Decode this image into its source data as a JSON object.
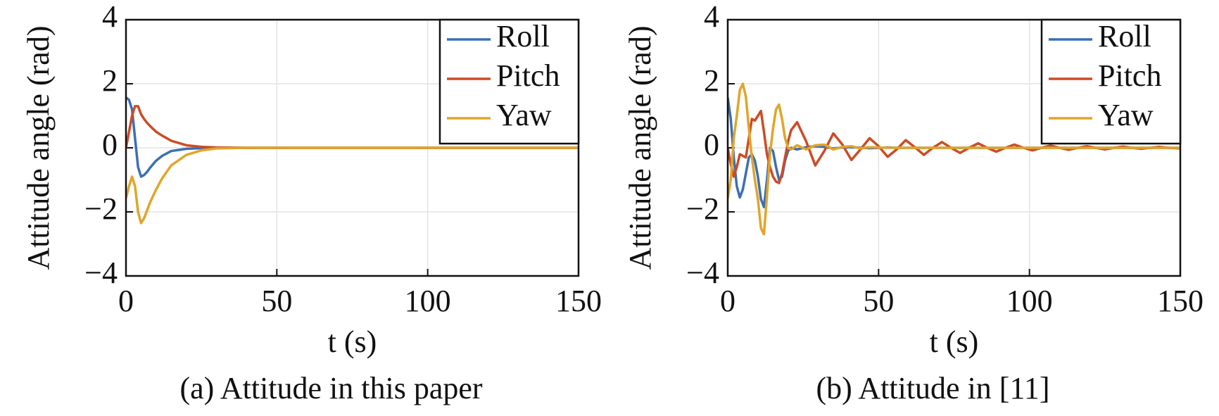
{
  "chart_data": [
    {
      "type": "line",
      "title": "(a) Attitude in this paper",
      "x_label": "t (s)",
      "y_label": "Attitude angle (rad)",
      "x": [
        0,
        1,
        2,
        3,
        4,
        5,
        6,
        7,
        8,
        10,
        12,
        15,
        20,
        25,
        30,
        40,
        60,
        100,
        150
      ],
      "series": [
        {
          "name": "Roll",
          "color": "#3b6fb6",
          "values": [
            1.57,
            1.5,
            1.2,
            0.3,
            -0.6,
            -0.9,
            -0.85,
            -0.75,
            -0.62,
            -0.4,
            -0.25,
            -0.1,
            -0.03,
            -0.01,
            0,
            0,
            0,
            0,
            0
          ]
        },
        {
          "name": "Pitch",
          "color": "#cc4b25",
          "values": [
            0,
            0.5,
            1.0,
            1.3,
            1.3,
            1.05,
            0.9,
            0.78,
            0.68,
            0.5,
            0.38,
            0.22,
            0.08,
            0.03,
            0.01,
            0,
            0,
            0,
            0
          ]
        },
        {
          "name": "Yaw",
          "color": "#e0a52a",
          "values": [
            -1.57,
            -1.2,
            -0.9,
            -1.2,
            -2.0,
            -2.35,
            -2.2,
            -1.95,
            -1.7,
            -1.3,
            -0.95,
            -0.55,
            -0.22,
            -0.08,
            -0.02,
            0,
            0,
            0,
            0
          ]
        }
      ],
      "xlim": [
        0,
        150
      ],
      "xticks": [
        0,
        50,
        100,
        150
      ],
      "ylim": [
        -4,
        4
      ],
      "yticks": [
        {
          "value": -4,
          "label": "−4"
        },
        {
          "value": -2,
          "label": "−2"
        },
        0,
        2,
        4
      ],
      "grid": true,
      "legend": "upper right"
    },
    {
      "type": "line",
      "title": "(b) Attitude in [11]",
      "x_label": "t (s)",
      "y_label": "Attitude angle (rad)",
      "x": [
        0,
        1,
        2,
        3,
        4,
        5,
        6,
        7,
        8,
        9,
        10,
        11,
        12,
        13,
        14,
        15,
        16,
        17,
        18,
        19,
        20,
        21,
        23,
        26,
        29,
        32,
        35,
        38,
        41,
        44,
        47,
        50,
        53,
        56,
        59,
        62,
        65,
        68,
        71,
        74,
        77,
        80,
        83,
        86,
        89,
        92,
        95,
        98,
        101,
        104,
        107,
        110,
        113,
        116,
        119,
        122,
        125,
        128,
        131,
        134,
        137,
        140,
        143,
        146,
        150
      ],
      "series": [
        {
          "name": "Roll",
          "color": "#3b6fb6",
          "values": [
            1.57,
            0.9,
            -0.3,
            -1.2,
            -1.55,
            -1.3,
            -0.8,
            -0.3,
            -0.2,
            -0.4,
            -0.9,
            -1.6,
            -1.85,
            -1.0,
            0,
            -0.1,
            -0.6,
            -1.0,
            -0.9,
            -0.4,
            -0.1,
            0,
            -0.05,
            0.02,
            0.05,
            0.03,
            -0.02,
            0.01,
            0.02,
            0,
            -0.01,
            0,
            0.01,
            0,
            0,
            0,
            0,
            0,
            0,
            0,
            0,
            0,
            0,
            0,
            0,
            0,
            0,
            0,
            0,
            0,
            0,
            0,
            0,
            0,
            0,
            0,
            0,
            0,
            0,
            0,
            0,
            0,
            0,
            0,
            0
          ]
        },
        {
          "name": "Pitch",
          "color": "#cc4b25",
          "values": [
            0,
            -0.5,
            -0.9,
            -0.6,
            -0.2,
            -0.25,
            -0.3,
            0.3,
            0.9,
            0.85,
            1.0,
            1.15,
            0.5,
            -0.2,
            -0.6,
            -0.9,
            -1.05,
            -1.1,
            -0.8,
            -0.3,
            0.2,
            0.55,
            0.8,
            0.2,
            -0.55,
            -0.1,
            0.45,
            0.1,
            -0.38,
            -0.05,
            0.3,
            0.05,
            -0.28,
            -0.05,
            0.24,
            0.02,
            -0.22,
            0,
            0.18,
            0,
            -0.16,
            0,
            0.14,
            0,
            -0.12,
            0,
            0.1,
            0,
            -0.08,
            0,
            0.07,
            0,
            -0.06,
            0,
            0.05,
            0,
            -0.05,
            0,
            0.04,
            0,
            -0.03,
            0,
            0.03,
            0,
            -0.02
          ]
        },
        {
          "name": "Yaw",
          "color": "#e0a52a",
          "values": [
            -1.57,
            -1.0,
            0.3,
            1.0,
            1.8,
            2.0,
            1.6,
            0.6,
            -0.3,
            -1.0,
            -1.6,
            -2.5,
            -2.7,
            -1.5,
            -0.2,
            0.6,
            1.2,
            1.35,
            0.9,
            0.3,
            0,
            -0.05,
            0.08,
            -0.05,
            0.08,
            0.1,
            -0.05,
            0.03,
            0.05,
            -0.02,
            0.02,
            0.01,
            0,
            0,
            0,
            0,
            0,
            0,
            0,
            0,
            0,
            0,
            0,
            0,
            0,
            0,
            0,
            0,
            0,
            0,
            0,
            0,
            0,
            0,
            0,
            0,
            0,
            0,
            0,
            0,
            0,
            0,
            0,
            0,
            0
          ]
        }
      ],
      "xlim": [
        0,
        150
      ],
      "xticks": [
        0,
        50,
        100,
        150
      ],
      "ylim": [
        -4,
        4
      ],
      "yticks": [
        {
          "value": -4,
          "label": "−4"
        },
        {
          "value": -2,
          "label": "−2"
        },
        0,
        2,
        4
      ],
      "grid": true,
      "legend": "upper right"
    }
  ]
}
